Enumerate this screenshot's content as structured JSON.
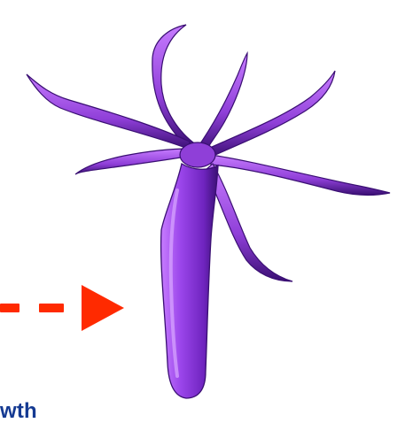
{
  "diagram": {
    "label": "wth",
    "colors": {
      "hydra_body": "#8f3fd8",
      "hydra_dark": "#3a0f73",
      "hydra_highlight": "#c77cff",
      "arrow": "#ff2a00",
      "label_text": "#153a92"
    },
    "icons": {
      "organism": "hydra-illustration",
      "arrow": "dashed-arrow-icon"
    }
  }
}
